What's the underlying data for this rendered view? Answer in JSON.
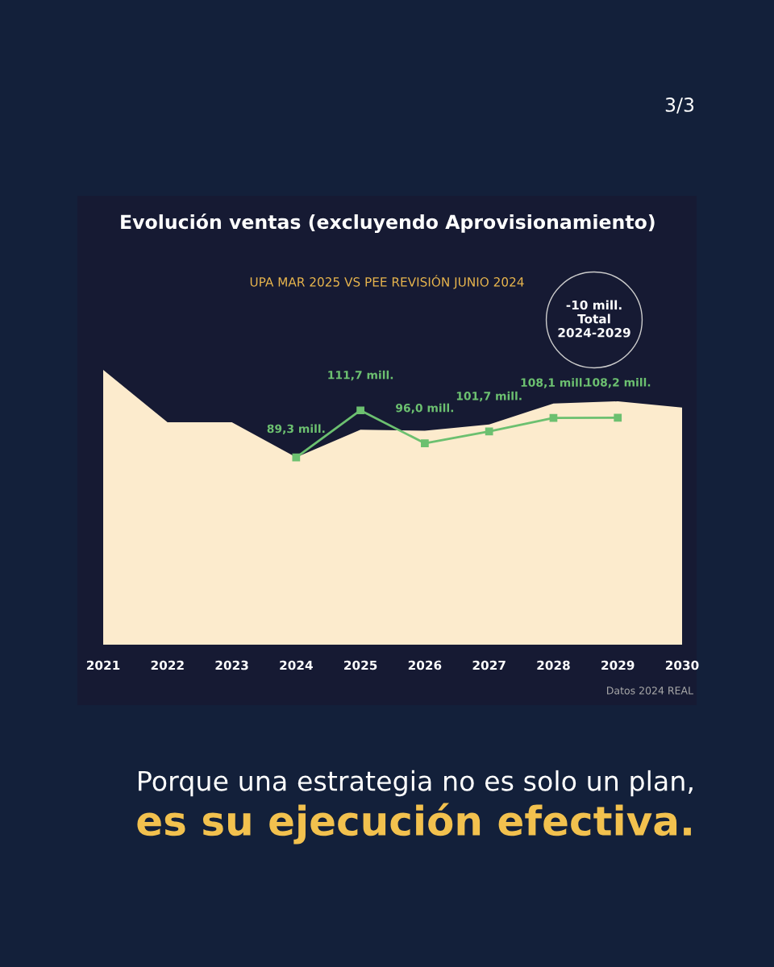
{
  "chart_data": {
    "type": "area",
    "title": "Evolución ventas (excluyendo Aprovisionamiento)",
    "subtitle": "UPA MAR 2025 VS PEE REVISIÓN JUNIO 2024",
    "categories": [
      "2021",
      "2022",
      "2023",
      "2024",
      "2025",
      "2026",
      "2027",
      "2028",
      "2029",
      "2030"
    ],
    "series": [
      {
        "color": "#fcebcd",
        "values": [
          131,
          106,
          106,
          89.3,
          102.5,
          102,
          105,
          115,
          116,
          113
        ]
      },
      {
        "type": "line",
        "color": "#6cc070",
        "values": [
          null,
          null,
          null,
          89.3,
          111.7,
          96.0,
          101.7,
          108.1,
          108.2,
          null
        ],
        "value_labels": [
          null,
          null,
          null,
          "89,3 mill.",
          "111,7 mill.",
          "96,0 mill.",
          "101,7 mill.",
          "108,1 mill.",
          "108,2 mill.",
          null
        ],
        "marker": "square",
        "line_style": "solid"
      }
    ],
    "tick_labels": "x",
    "grid": false,
    "legend": false,
    "annotations": [
      "-10 mill.\nTotal\n2024-2029",
      "Datos 2024 REAL",
      "3/3",
      "Porque una estrategia no es solo un plan,",
      "es su ejecución efectiva."
    ]
  }
}
